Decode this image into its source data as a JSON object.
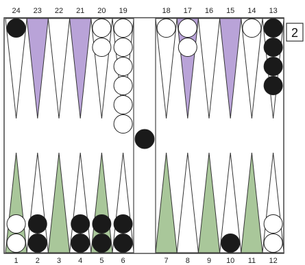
{
  "top_point_numbers": [
    "24",
    "23",
    "22",
    "21",
    "20",
    "19",
    "18",
    "17",
    "16",
    "15",
    "14",
    "13"
  ],
  "bottom_point_numbers": [
    "1",
    "2",
    "3",
    "4",
    "5",
    "6",
    "7",
    "8",
    "9",
    "10",
    "11",
    "12"
  ],
  "doubling_cube": "2",
  "colors": {
    "board_border": "#444444",
    "point_white": "#ffffff",
    "point_purple": "#b9a3d8",
    "point_green": "#a9c79a",
    "checker_white": "#ffffff",
    "checker_black": "#1a1a1a"
  },
  "points": [
    {
      "number": "24",
      "color": "white",
      "checkers": "black",
      "count": 1
    },
    {
      "number": "23",
      "color": "purple",
      "checkers": "none",
      "count": 0
    },
    {
      "number": "22",
      "color": "white",
      "checkers": "none",
      "count": 0
    },
    {
      "number": "21",
      "color": "purple",
      "checkers": "none",
      "count": 0
    },
    {
      "number": "20",
      "color": "white",
      "checkers": "white",
      "count": 2
    },
    {
      "number": "19",
      "color": "white",
      "checkers": "white",
      "count": 6
    },
    {
      "number": "18",
      "color": "white",
      "checkers": "white",
      "count": 1
    },
    {
      "number": "17",
      "color": "purple",
      "checkers": "white",
      "count": 2
    },
    {
      "number": "16",
      "color": "white",
      "checkers": "none",
      "count": 0
    },
    {
      "number": "15",
      "color": "purple",
      "checkers": "none",
      "count": 0
    },
    {
      "number": "14",
      "color": "white",
      "checkers": "white",
      "count": 1
    },
    {
      "number": "13",
      "color": "white",
      "checkers": "black",
      "count": 4
    },
    {
      "number": "1",
      "color": "green",
      "checkers": "white",
      "count": 2
    },
    {
      "number": "2",
      "color": "white",
      "checkers": "black",
      "count": 2
    },
    {
      "number": "3",
      "color": "green",
      "checkers": "none",
      "count": 0
    },
    {
      "number": "4",
      "color": "white",
      "checkers": "black",
      "count": 2
    },
    {
      "number": "5",
      "color": "green",
      "checkers": "black",
      "count": 2
    },
    {
      "number": "6",
      "color": "white",
      "checkers": "black",
      "count": 2
    },
    {
      "number": "7",
      "color": "green",
      "checkers": "none",
      "count": 0
    },
    {
      "number": "8",
      "color": "white",
      "checkers": "none",
      "count": 0
    },
    {
      "number": "9",
      "color": "green",
      "checkers": "none",
      "count": 0
    },
    {
      "number": "10",
      "color": "white",
      "checkers": "black",
      "count": 1
    },
    {
      "number": "11",
      "color": "green",
      "checkers": "none",
      "count": 0
    },
    {
      "number": "12",
      "color": "white",
      "checkers": "white",
      "count": 2
    }
  ],
  "bar": {
    "checkers": "black",
    "count": 1
  }
}
